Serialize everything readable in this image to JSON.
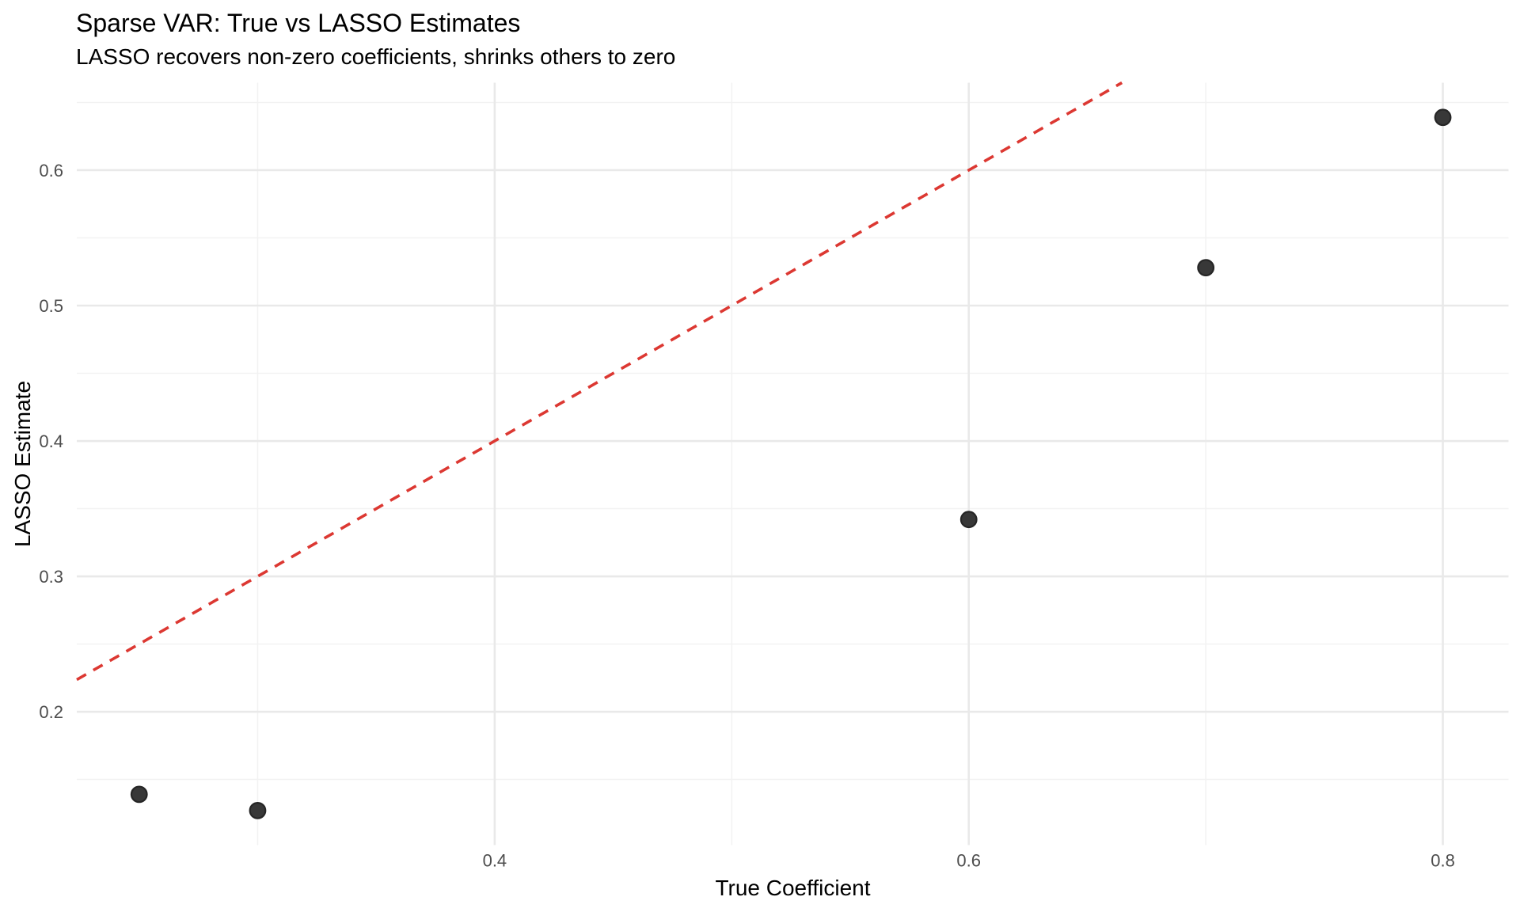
{
  "chart_data": {
    "type": "scatter",
    "title": "Sparse VAR: True vs LASSO Estimates",
    "subtitle": "LASSO recovers non-zero coefficients, shrinks others to zero",
    "xlabel": "True Coefficient",
    "ylabel": "LASSO Estimate",
    "points": [
      {
        "x": 0.25,
        "y": 0.139
      },
      {
        "x": 0.3,
        "y": 0.127
      },
      {
        "x": 0.6,
        "y": 0.342
      },
      {
        "x": 0.7,
        "y": 0.528
      },
      {
        "x": 0.8,
        "y": 0.639
      }
    ],
    "reference_line": {
      "type": "identity",
      "slope": 1,
      "intercept": 0,
      "style": "dashed"
    },
    "xlim": [
      0.2237,
      0.8277
    ],
    "ylim": [
      0.1015,
      0.6646
    ],
    "x_ticks": [
      0.4,
      0.6,
      0.8
    ],
    "x_tick_labels": [
      "0.4",
      "0.6",
      "0.8"
    ],
    "x_minor_ticks": [
      0.3,
      0.5,
      0.7
    ],
    "y_ticks": [
      0.2,
      0.3,
      0.4,
      0.5,
      0.6
    ],
    "y_tick_labels": [
      "0.2",
      "0.3",
      "0.4",
      "0.5",
      "0.6"
    ],
    "y_minor_ticks": [
      0.15,
      0.25,
      0.35,
      0.45,
      0.55,
      0.65
    ],
    "grid": "major+minor, no axis lines, no tick marks (theme_minimal)",
    "legend": "none",
    "colors": {
      "point_fill": "#383838",
      "point_stroke": "#262626",
      "reference_line": "#DC3832",
      "grid_major": "#E9E9E9",
      "grid_minor": "#F2F2F2",
      "tick_label": "#4D4D4D",
      "text": "#000000",
      "background": "#FFFFFF"
    }
  }
}
